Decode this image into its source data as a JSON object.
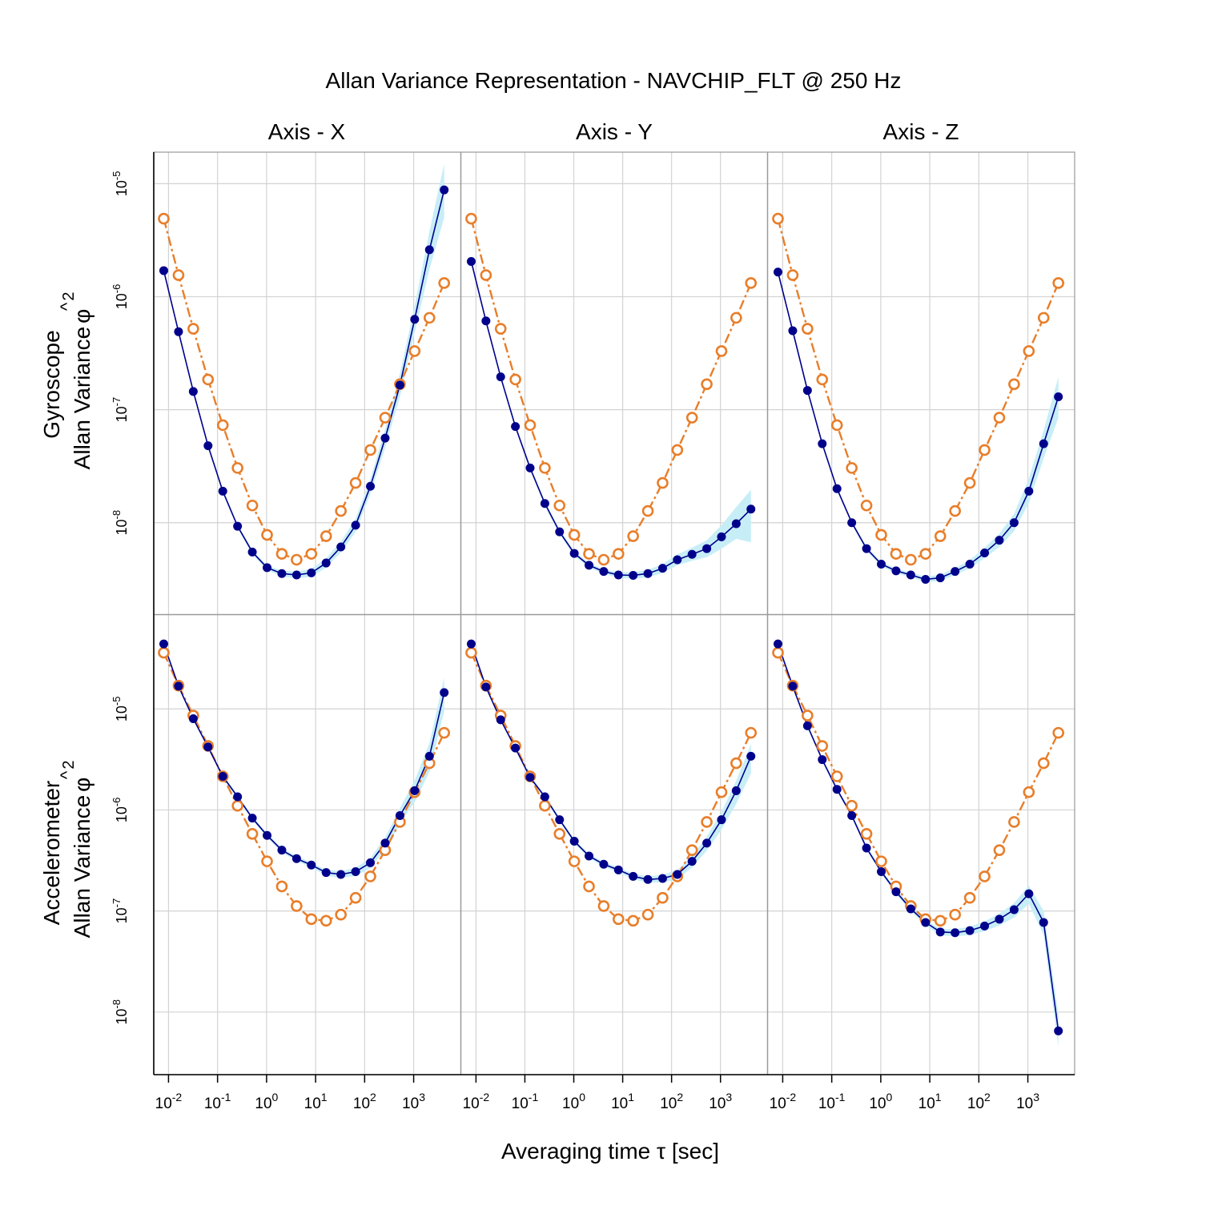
{
  "title": "Allan Variance Representation - NAVCHIP_FLT @ 250 Hz",
  "xlabel": "Averaging time τ [sec]",
  "columns": [
    "Axis - X",
    "Axis - Y",
    "Axis - Z"
  ],
  "rows": [
    {
      "sensor": "Gyroscope",
      "ylabel": "Allan Variance",
      "ysymbol": "φ",
      "yhat": "^",
      "ysup": "2"
    },
    {
      "sensor": "Accelerometer",
      "ylabel": "Allan Variance",
      "ysymbol": "φ",
      "yhat": "^",
      "ysup": "2"
    }
  ],
  "colors": {
    "empirical": "#00008b",
    "model": "#e87e2a",
    "ci_band": "#c7eef7",
    "grid": "#d3d3d3",
    "frame": "#000000"
  },
  "axes": {
    "x": {
      "scale": "log10",
      "range": [
        0.005,
        9000
      ],
      "ticks": [
        0.01,
        0.1,
        1,
        10,
        100,
        1000
      ],
      "tick_exponents": [
        "-2",
        "-1",
        "0",
        "1",
        "2",
        "3"
      ],
      "tick_base": "10"
    },
    "gyro_y": {
      "scale": "log10",
      "range": [
        1.55e-09,
        1.9e-05
      ],
      "ticks": [
        1e-08,
        1e-07,
        1e-06,
        1e-05
      ],
      "tick_exponents": [
        "-8",
        "-7",
        "-6",
        "-5"
      ],
      "tick_base": "10"
    },
    "accel_y": {
      "scale": "log10",
      "range": [
        2.4e-09,
        8.5e-05
      ],
      "ticks": [
        1e-08,
        1e-07,
        1e-06,
        1e-05
      ],
      "tick_exponents": [
        "-8",
        "-7",
        "-6",
        "-5"
      ],
      "tick_base": "10"
    },
    "grid": true
  },
  "chart_data": {
    "type": "line",
    "scale": "log-log",
    "x": [
      0.008,
      0.016,
      0.032,
      0.064,
      0.128,
      0.256,
      0.512,
      1.024,
      2.048,
      4.096,
      8.192,
      16.384,
      32.768,
      65.536,
      131.072,
      262.144,
      524.288,
      1048.576,
      2097.152,
      4194.304
    ],
    "panels": [
      {
        "row": "Gyroscope",
        "column": "Axis - X",
        "empirical": [
          1.7e-06,
          4.9e-07,
          1.45e-07,
          4.8e-08,
          1.9e-08,
          9.3e-09,
          5.5e-09,
          4e-09,
          3.55e-09,
          3.45e-09,
          3.6e-09,
          4.4e-09,
          6.1e-09,
          9.5e-09,
          2.1e-08,
          5.6e-08,
          1.65e-07,
          6.3e-07,
          2.6e-06,
          8.8e-06
        ],
        "model": [
          4.9e-06,
          1.55e-06,
          5.2e-07,
          1.85e-07,
          7.3e-08,
          3.05e-08,
          1.42e-08,
          7.8e-09,
          5.3e-09,
          4.7e-09,
          5.3e-09,
          7.6e-09,
          1.27e-08,
          2.25e-08,
          4.4e-08,
          8.5e-08,
          1.68e-07,
          3.3e-07,
          6.5e-07,
          1.32e-06
        ],
        "ci_lower": [
          1.63e-06,
          4.7e-07,
          1.39e-07,
          4.6e-08,
          1.82e-08,
          8.9e-09,
          5.25e-09,
          3.8e-09,
          3.35e-09,
          3.22e-09,
          3.32e-09,
          4e-09,
          5.45e-09,
          8.3e-09,
          1.8e-08,
          4.6e-08,
          1.3e-07,
          4.8e-07,
          1.75e-06,
          5e-06
        ],
        "ci_upper": [
          1.77e-06,
          5.1e-07,
          1.51e-07,
          5e-08,
          1.98e-08,
          9.7e-09,
          5.75e-09,
          4.2e-09,
          3.75e-09,
          3.7e-09,
          3.9e-09,
          4.85e-09,
          6.8e-09,
          1.09e-08,
          2.45e-08,
          6.8e-08,
          2.1e-07,
          8.3e-07,
          3.8e-06,
          1.5e-05
        ]
      },
      {
        "row": "Gyroscope",
        "column": "Axis - Y",
        "empirical": [
          2.05e-06,
          6.1e-07,
          1.95e-07,
          7.1e-08,
          3.05e-08,
          1.48e-08,
          8.3e-09,
          5.35e-09,
          4.2e-09,
          3.7e-09,
          3.45e-09,
          3.42e-09,
          3.55e-09,
          3.95e-09,
          4.7e-09,
          5.25e-09,
          5.9e-09,
          7.5e-09,
          9.8e-09,
          1.32e-08
        ],
        "model": [
          4.9e-06,
          1.55e-06,
          5.2e-07,
          1.85e-07,
          7.3e-08,
          3.05e-08,
          1.42e-08,
          7.8e-09,
          5.3e-09,
          4.7e-09,
          5.3e-09,
          7.6e-09,
          1.27e-08,
          2.25e-08,
          4.4e-08,
          8.5e-08,
          1.68e-07,
          3.3e-07,
          6.5e-07,
          1.32e-06
        ],
        "ci_lower": [
          1.96e-06,
          5.85e-07,
          1.87e-07,
          6.8e-08,
          2.92e-08,
          1.41e-08,
          7.9e-09,
          5.1e-09,
          4e-09,
          3.52e-09,
          3.26e-09,
          3.2e-09,
          3.28e-09,
          3.6e-09,
          4.2e-09,
          4.6e-09,
          4.95e-09,
          5.9e-09,
          7.2e-09,
          6.7e-09
        ],
        "ci_upper": [
          2.14e-06,
          6.35e-07,
          2.03e-07,
          7.4e-08,
          3.18e-08,
          1.55e-08,
          8.7e-09,
          5.6e-09,
          4.4e-09,
          3.88e-09,
          3.65e-09,
          3.65e-09,
          3.82e-09,
          4.3e-09,
          5.25e-09,
          6e-09,
          7e-09,
          9.5e-09,
          1.38e-08,
          1.95e-08
        ]
      },
      {
        "row": "Gyroscope",
        "column": "Axis - Z",
        "empirical": [
          1.65e-06,
          5e-07,
          1.48e-07,
          5e-08,
          2e-08,
          1e-08,
          5.9e-09,
          4.3e-09,
          3.75e-09,
          3.45e-09,
          3.15e-09,
          3.25e-09,
          3.7e-09,
          4.3e-09,
          5.4e-09,
          7e-09,
          1e-08,
          1.9e-08,
          5e-08,
          1.3e-07
        ],
        "model": [
          4.9e-06,
          1.55e-06,
          5.2e-07,
          1.85e-07,
          7.3e-08,
          3.05e-08,
          1.42e-08,
          7.8e-09,
          5.3e-09,
          4.7e-09,
          5.3e-09,
          7.6e-09,
          1.27e-08,
          2.25e-08,
          4.4e-08,
          8.5e-08,
          1.68e-07,
          3.3e-07,
          6.5e-07,
          1.32e-06
        ],
        "ci_lower": [
          1.58e-06,
          4.8e-07,
          1.42e-07,
          4.8e-08,
          1.92e-08,
          9.6e-09,
          5.65e-09,
          4.1e-09,
          3.57e-09,
          3.28e-09,
          2.98e-09,
          3.05e-09,
          3.45e-09,
          3.95e-09,
          4.85e-09,
          6.1e-09,
          8.4e-09,
          1.5e-08,
          3.7e-08,
          8.5e-08
        ],
        "ci_upper": [
          1.72e-06,
          5.2e-07,
          1.54e-07,
          5.2e-08,
          2.08e-08,
          1.04e-08,
          6.15e-09,
          4.5e-09,
          3.93e-09,
          3.63e-09,
          3.33e-09,
          3.46e-09,
          3.97e-09,
          4.68e-09,
          6e-09,
          8e-09,
          1.2e-08,
          2.45e-08,
          6.6e-08,
          1.95e-07
        ]
      },
      {
        "row": "Accelerometer",
        "column": "Axis - X",
        "empirical": [
          4.4e-05,
          1.68e-05,
          8e-06,
          4.2e-06,
          2.15e-06,
          1.35e-06,
          8.3e-07,
          5.6e-07,
          4e-07,
          3.3e-07,
          2.85e-07,
          2.4e-07,
          2.3e-07,
          2.45e-07,
          3e-07,
          4.7e-07,
          8.8e-07,
          1.55e-06,
          3.4e-06,
          1.45e-05
        ],
        "model": [
          3.6e-05,
          1.7e-05,
          8.6e-06,
          4.3e-06,
          2.15e-06,
          1.1e-06,
          5.8e-07,
          3.1e-07,
          1.75e-07,
          1.12e-07,
          8.3e-08,
          8e-08,
          9.2e-08,
          1.35e-07,
          2.2e-07,
          4e-07,
          7.6e-07,
          1.5e-06,
          2.9e-06,
          5.8e-06
        ],
        "ci_lower": [
          4.2e-05,
          1.61e-05,
          7.7e-06,
          4.03e-06,
          2.06e-06,
          1.29e-06,
          7.95e-07,
          5.35e-07,
          3.8e-07,
          3.13e-07,
          2.68e-07,
          2.24e-07,
          2.12e-07,
          2.22e-07,
          2.66e-07,
          4.05e-07,
          7.3e-07,
          1.2e-06,
          2.4e-06,
          9.5e-06
        ],
        "ci_upper": [
          4.6e-05,
          1.75e-05,
          8.3e-06,
          4.37e-06,
          2.24e-06,
          1.41e-06,
          8.65e-07,
          5.85e-07,
          4.2e-07,
          3.47e-07,
          3.02e-07,
          2.56e-07,
          2.48e-07,
          2.68e-07,
          3.34e-07,
          5.35e-07,
          1.04e-06,
          1.95e-06,
          4.6e-06,
          2.05e-05
        ]
      },
      {
        "row": "Accelerometer",
        "column": "Axis - Y",
        "empirical": [
          4.4e-05,
          1.65e-05,
          7.8e-06,
          4.1e-06,
          2.1e-06,
          1.35e-06,
          8e-07,
          4.9e-07,
          3.5e-07,
          2.9e-07,
          2.55e-07,
          2.2e-07,
          2.05e-07,
          2.1e-07,
          2.3e-07,
          3.1e-07,
          4.7e-07,
          8e-07,
          1.55e-06,
          3.4e-06
        ],
        "model": [
          3.6e-05,
          1.7e-05,
          8.6e-06,
          4.3e-06,
          2.15e-06,
          1.1e-06,
          5.8e-07,
          3.1e-07,
          1.75e-07,
          1.12e-07,
          8.3e-08,
          8e-08,
          9.2e-08,
          1.35e-07,
          2.2e-07,
          4e-07,
          7.6e-07,
          1.5e-06,
          2.9e-06,
          5.8e-06
        ],
        "ci_lower": [
          4.2e-05,
          1.58e-05,
          7.5e-06,
          3.93e-06,
          2.01e-06,
          1.29e-06,
          7.65e-07,
          4.68e-07,
          3.33e-07,
          2.75e-07,
          2.4e-07,
          2.06e-07,
          1.9e-07,
          1.92e-07,
          2.06e-07,
          2.7e-07,
          3.95e-07,
          6.4e-07,
          1.15e-06,
          2.3e-06
        ],
        "ci_upper": [
          4.6e-05,
          1.72e-05,
          8.1e-06,
          4.27e-06,
          2.19e-06,
          1.41e-06,
          8.35e-07,
          5.12e-07,
          3.67e-07,
          3.05e-07,
          2.7e-07,
          2.34e-07,
          2.2e-07,
          2.28e-07,
          2.54e-07,
          3.5e-07,
          5.45e-07,
          9.6e-07,
          1.95e-06,
          4.5e-06
        ]
      },
      {
        "row": "Accelerometer",
        "column": "Axis - Z",
        "empirical": [
          4.4e-05,
          1.68e-05,
          6.8e-06,
          3.15e-06,
          1.6e-06,
          8.8e-07,
          4.2e-07,
          2.45e-07,
          1.55e-07,
          1.05e-07,
          7.7e-08,
          6.2e-08,
          6.1e-08,
          6.4e-08,
          7.1e-08,
          8.3e-08,
          1.03e-07,
          1.48e-07,
          7.7e-08,
          6.5e-09
        ],
        "model": [
          3.6e-05,
          1.7e-05,
          8.6e-06,
          4.3e-06,
          2.15e-06,
          1.1e-06,
          5.8e-07,
          3.1e-07,
          1.75e-07,
          1.12e-07,
          8.3e-08,
          8e-08,
          9.2e-08,
          1.35e-07,
          2.2e-07,
          4e-07,
          7.6e-07,
          1.5e-06,
          2.9e-06,
          5.8e-06
        ],
        "ci_lower": [
          4.2e-05,
          1.61e-05,
          6.5e-06,
          3.02e-06,
          1.53e-06,
          8.4e-07,
          4e-07,
          2.33e-07,
          1.47e-07,
          9.9e-08,
          7.2e-08,
          5.75e-08,
          5.6e-08,
          5.8e-08,
          6.3e-08,
          7.2e-08,
          8.6e-08,
          1.18e-07,
          5.8e-08,
          4.5e-09
        ],
        "ci_upper": [
          4.6e-05,
          1.75e-05,
          7.1e-06,
          3.28e-06,
          1.67e-06,
          9.2e-07,
          4.4e-07,
          2.57e-07,
          1.63e-07,
          1.11e-07,
          8.2e-08,
          6.65e-08,
          6.6e-08,
          7e-08,
          7.9e-08,
          9.4e-08,
          1.2e-07,
          1.78e-07,
          1e-07,
          9.5e-09
        ]
      }
    ]
  }
}
